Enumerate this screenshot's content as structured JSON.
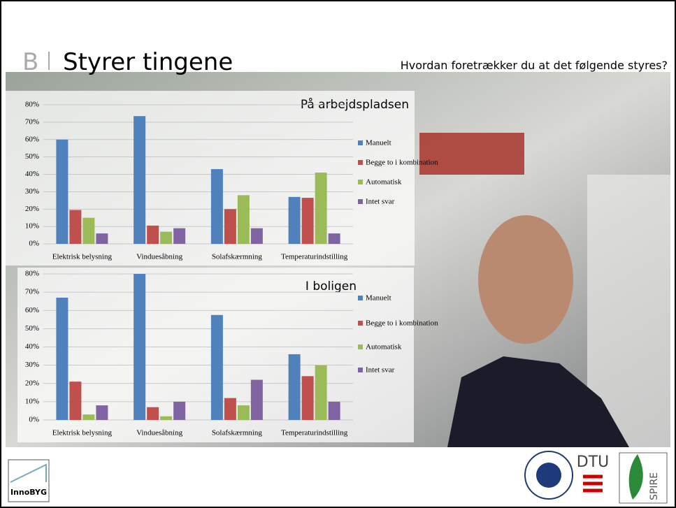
{
  "slide": {
    "letter": "B",
    "title": "Styrer tingene",
    "question": "Hvordan foretrækker du at det følgende styres?",
    "logos": [
      "InnoBYG",
      "DTU",
      "SPIRE"
    ]
  },
  "chart_data": [
    {
      "type": "bar",
      "title": "På arbejdspladsen",
      "categories": [
        "Elektrisk belysning",
        "Vinduesåbning",
        "Solafskærmning",
        "Temperaturindstilling"
      ],
      "series": [
        {
          "name": "Manuelt",
          "color": "#4f81bd",
          "values": [
            60,
            73.5,
            43,
            27
          ]
        },
        {
          "name": "Begge to i kombination",
          "color": "#c0504d",
          "values": [
            19.5,
            10.5,
            20,
            26.5
          ]
        },
        {
          "name": "Automatisk",
          "color": "#9bbb59",
          "values": [
            15,
            7,
            28,
            41
          ]
        },
        {
          "name": "Intet svar",
          "color": "#8064a2",
          "values": [
            6,
            9,
            9,
            6
          ]
        }
      ],
      "ylim": [
        0,
        80
      ],
      "yticks": [
        {
          "value": 0,
          "label": "0%"
        },
        {
          "value": 10,
          "label": "10%"
        },
        {
          "value": 20,
          "label": "20%"
        },
        {
          "value": 30,
          "label": "30%"
        },
        {
          "value": 40,
          "label": "40%"
        },
        {
          "value": 50,
          "label": "50%"
        },
        {
          "value": 60,
          "label": "60%"
        },
        {
          "value": 70,
          "label": "70%"
        },
        {
          "value": 80,
          "label": "80%"
        }
      ],
      "grid": true
    },
    {
      "type": "bar",
      "title": "I boligen",
      "categories": [
        "Elektrisk belysning",
        "Vinduesåbning",
        "Solafskærmning",
        "Temperaturindstilling"
      ],
      "series": [
        {
          "name": "Manuelt",
          "color": "#4f81bd",
          "values": [
            67,
            80,
            57.5,
            36
          ]
        },
        {
          "name": "Begge to i kombination",
          "color": "#c0504d",
          "values": [
            21,
            7,
            12,
            24
          ]
        },
        {
          "name": "Automatisk",
          "color": "#9bbb59",
          "values": [
            3,
            2,
            8,
            30
          ]
        },
        {
          "name": "Intet svar",
          "color": "#8064a2",
          "values": [
            8,
            10,
            22,
            10
          ]
        }
      ],
      "ylim": [
        0,
        80
      ],
      "yticks": [
        {
          "value": 0,
          "label": "0%"
        },
        {
          "value": 10,
          "label": "10%"
        },
        {
          "value": 20,
          "label": "20%"
        },
        {
          "value": 30,
          "label": "30%"
        },
        {
          "value": 40,
          "label": "40%"
        },
        {
          "value": 50,
          "label": "50%"
        },
        {
          "value": 60,
          "label": "60%"
        },
        {
          "value": 70,
          "label": "70%"
        },
        {
          "value": 80,
          "label": "80%"
        }
      ],
      "grid": true
    }
  ]
}
